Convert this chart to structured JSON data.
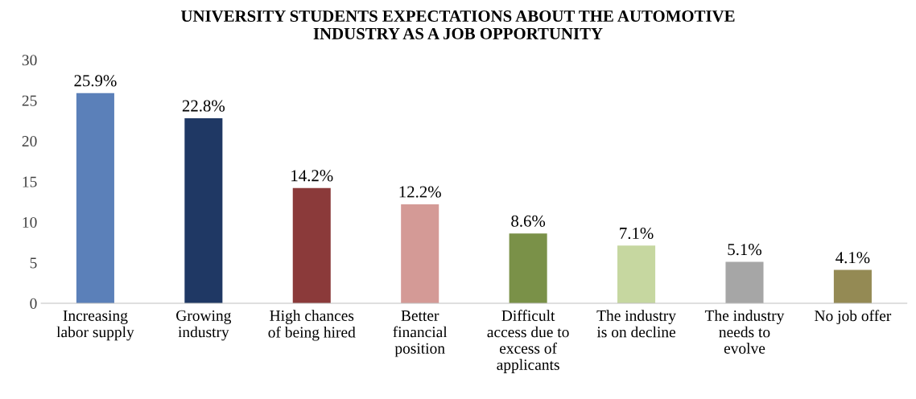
{
  "chart_data": {
    "type": "bar",
    "title": "UNIVERSITY STUDENTS EXPECTATIONS ABOUT THE AUTOMOTIVE\nINDUSTRY AS A JOB OPPORTUNITY",
    "categories": [
      "Increasing\nlabor supply",
      "Growing\nindustry",
      "High chances\nof being hired",
      "Better\nfinancial\nposition",
      "Difficult\naccess due to\nexcess of\napplicants",
      "The industry\nis on decline",
      "The industry\nneeds to\nevolve",
      "No job offer"
    ],
    "values": [
      25.9,
      22.8,
      14.2,
      12.2,
      8.6,
      7.1,
      5.1,
      4.1
    ],
    "colors": [
      "#5b80b9",
      "#1f3864",
      "#8b3a3a",
      "#d49a96",
      "#7a9148",
      "#c6d7a0",
      "#a6a6a6",
      "#948a54"
    ],
    "value_labels": [
      "25.9%",
      "22.8%",
      "14.2%",
      "12.2%",
      "8.6%",
      "7.1%",
      "5.1%",
      "4.1%"
    ],
    "ylim": [
      0,
      30
    ],
    "yticks": [
      0,
      5,
      10,
      15,
      20,
      25,
      30
    ],
    "grid": false
  }
}
